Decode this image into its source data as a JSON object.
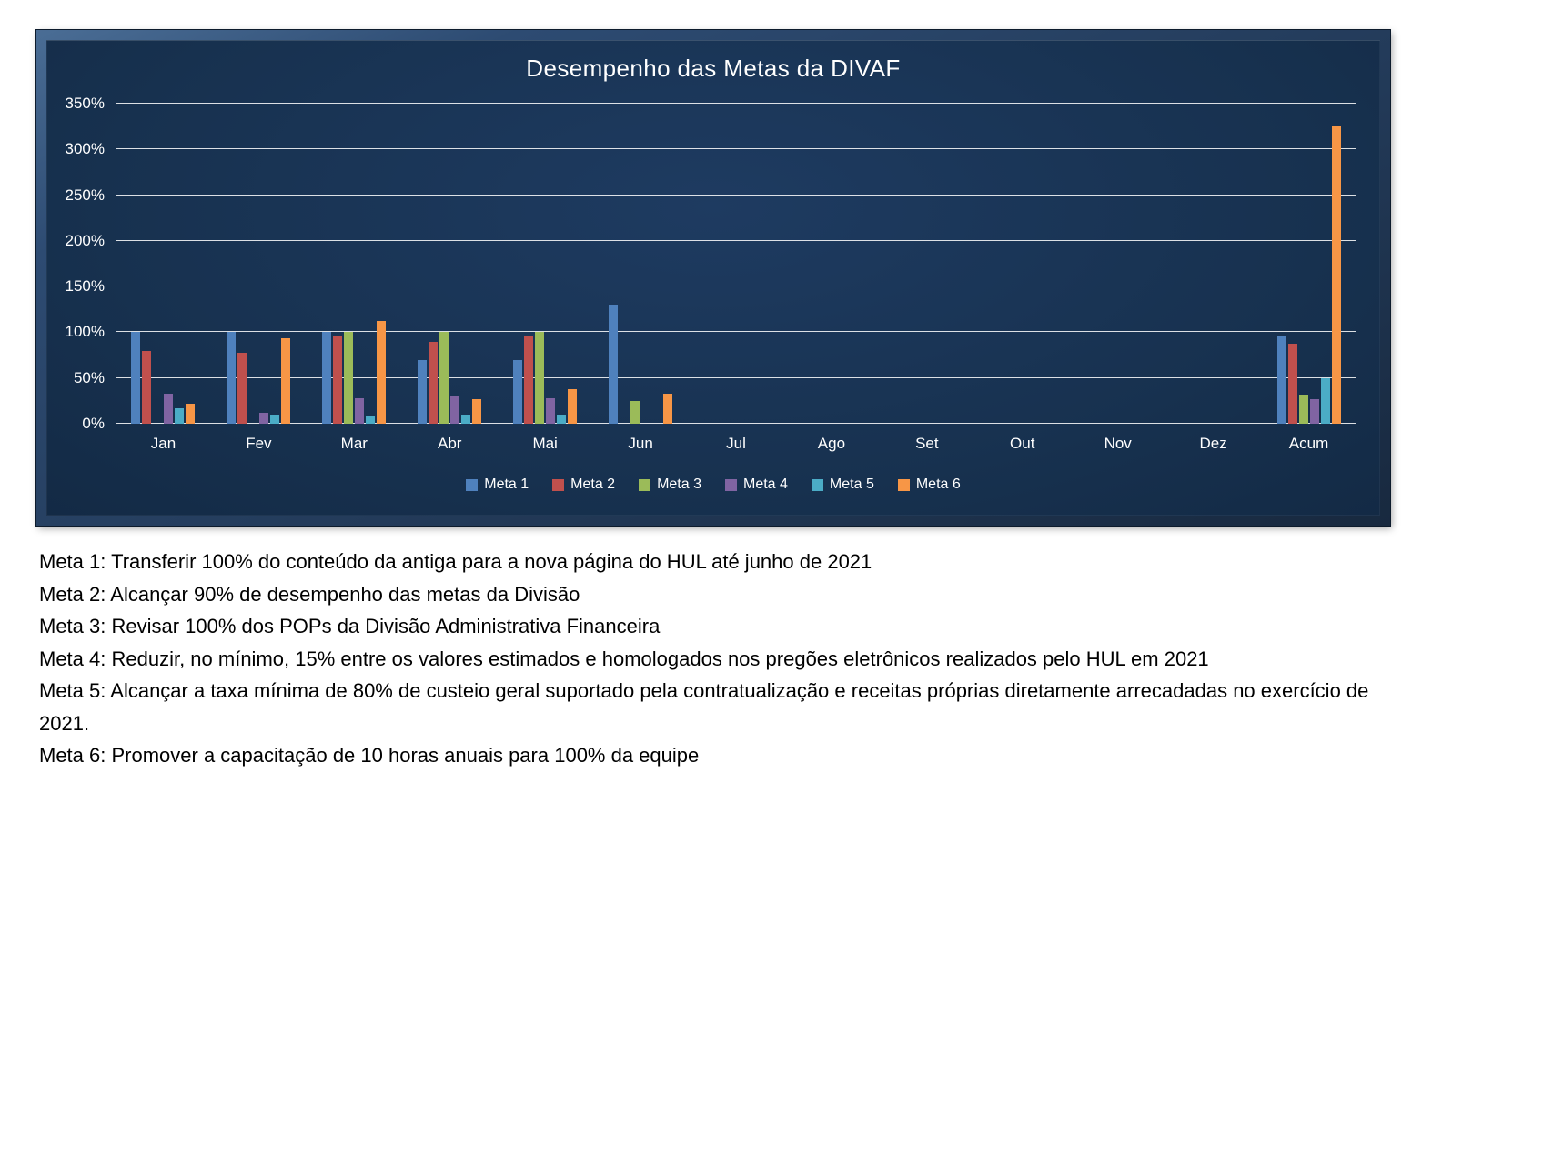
{
  "chart_data": {
    "type": "bar",
    "title": "Desempenho das Metas da DIVAF",
    "categories": [
      "Jan",
      "Fev",
      "Mar",
      "Abr",
      "Mai",
      "Jun",
      "Jul",
      "Ago",
      "Set",
      "Out",
      "Nov",
      "Dez",
      "Acum"
    ],
    "series": [
      {
        "name": "Meta 1",
        "color": "#4F81BD",
        "values": [
          100,
          100,
          100,
          70,
          70,
          130,
          0,
          0,
          0,
          0,
          0,
          0,
          95
        ]
      },
      {
        "name": "Meta 2",
        "color": "#C0504D",
        "values": [
          80,
          78,
          95,
          90,
          95,
          0,
          0,
          0,
          0,
          0,
          0,
          0,
          88
        ]
      },
      {
        "name": "Meta 3",
        "color": "#9BBB59",
        "values": [
          0,
          0,
          100,
          100,
          100,
          25,
          0,
          0,
          0,
          0,
          0,
          0,
          32
        ]
      },
      {
        "name": "Meta 4",
        "color": "#8064A2",
        "values": [
          33,
          12,
          28,
          30,
          28,
          0,
          0,
          0,
          0,
          0,
          0,
          0,
          27
        ]
      },
      {
        "name": "Meta 5",
        "color": "#4BACC6",
        "values": [
          17,
          10,
          8,
          10,
          10,
          0,
          0,
          0,
          0,
          0,
          0,
          0,
          50
        ]
      },
      {
        "name": "Meta 6",
        "color": "#F79646",
        "values": [
          22,
          93,
          112,
          27,
          38,
          33,
          0,
          0,
          0,
          0,
          0,
          0,
          325
        ]
      }
    ],
    "xlabel": "",
    "ylabel": "",
    "ylim": [
      0,
      350
    ],
    "ytick_step": 50,
    "ytick_format": "percent",
    "grid": true,
    "legend_position": "bottom",
    "background_color": "#17314F",
    "text_color": "#FFFFFF"
  },
  "notes": {
    "lines": [
      "Meta 1: Transferir 100% do conteúdo da antiga para a nova página do HUL até junho de 2021",
      "Meta 2: Alcançar 90% de desempenho das metas da Divisão",
      "Meta 3: Revisar 100% dos POPs da Divisão Administrativa Financeira",
      "Meta 4: Reduzir, no mínimo, 15% entre os valores estimados e homologados nos pregões eletrônicos realizados pelo HUL em 2021",
      "Meta 5: Alcançar a taxa mínima de 80% de custeio geral suportado pela contratualização e receitas próprias diretamente arrecadadas no exercício de 2021.",
      "Meta 6: Promover a capacitação de 10 horas anuais para 100% da equipe"
    ]
  }
}
